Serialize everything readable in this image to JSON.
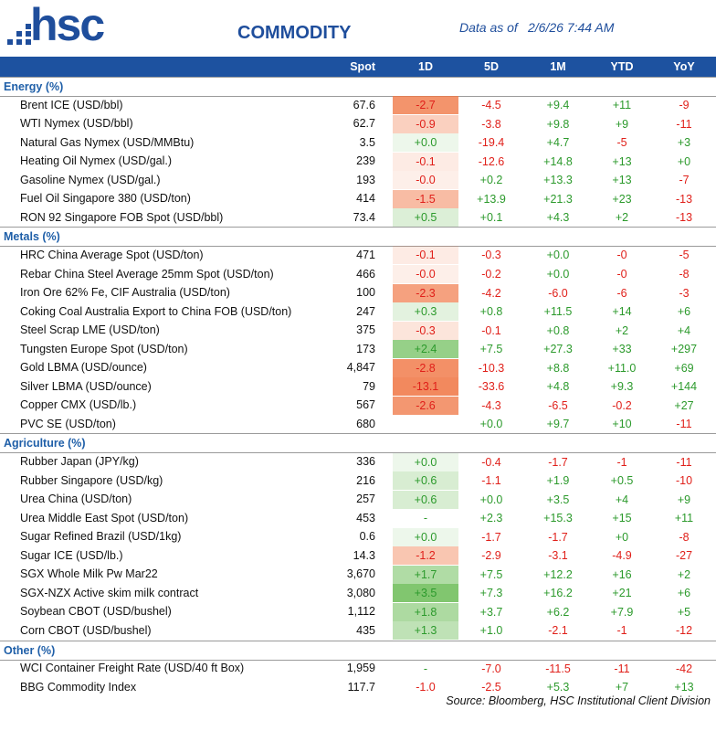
{
  "header": {
    "logo": "hsc",
    "title": "COMMODITY",
    "date_label": "Data as of",
    "date": "2/6/26 7:44 AM"
  },
  "table": {
    "columns": [
      "Spot",
      "1D",
      "5D",
      "1M",
      "YTD",
      "YoY"
    ],
    "sections": [
      {
        "title": "Energy (%)",
        "rows": [
          [
            "Brent ICE (USD/bbl)",
            "67.6",
            "-2.7",
            "-4.5",
            "+9.4",
            "+11",
            "-9"
          ],
          [
            "WTI Nymex (USD/bbl)",
            "62.7",
            "-0.9",
            "-3.8",
            "+9.8",
            "+9",
            "-11"
          ],
          [
            "Natural Gas Nymex (USD/MMBtu)",
            "3.5",
            "+0.0",
            "-19.4",
            "+4.7",
            "-5",
            "+3"
          ],
          [
            "Heating Oil Nymex (USD/gal.)",
            "239",
            "-0.1",
            "-12.6",
            "+14.8",
            "+13",
            "+0"
          ],
          [
            "Gasoline Nymex (USD/gal.)",
            "193",
            "-0.0",
            "+0.2",
            "+13.3",
            "+13",
            "-7"
          ],
          [
            "Fuel Oil Singapore 380 (USD/ton)",
            "414",
            "-1.5",
            "+13.9",
            "+21.3",
            "+23",
            "-13"
          ],
          [
            "RON 92 Singapore FOB Spot (USD/bbl)",
            "73.4",
            "+0.5",
            "+0.1",
            "+4.3",
            "+2",
            "-13"
          ]
        ]
      },
      {
        "title": "Metals (%)",
        "rows": [
          [
            "HRC China Average Spot (USD/ton)",
            "471",
            "-0.1",
            "-0.3",
            "+0.0",
            "-0",
            "-5"
          ],
          [
            "Rebar China Steel Average 25mm Spot (USD/ton)",
            "466",
            "-0.0",
            "-0.2",
            "+0.0",
            "-0",
            "-8"
          ],
          [
            "Iron Ore 62% Fe, CIF Australia (USD/ton)",
            "100",
            "-2.3",
            "-4.2",
            "-6.0",
            "-6",
            "-3"
          ],
          [
            "Coking Coal Australia Export to China FOB (USD/ton)",
            "247",
            "+0.3",
            "+0.8",
            "+11.5",
            "+14",
            "+6"
          ],
          [
            "Steel Scrap LME (USD/ton)",
            "375",
            "-0.3",
            "-0.1",
            "+0.8",
            "+2",
            "+4"
          ],
          [
            "Tungsten Europe Spot (USD/ton)",
            "173",
            "+2.4",
            "+7.5",
            "+27.3",
            "+33",
            "+297"
          ],
          [
            "Gold LBMA (USD/ounce)",
            "4,847",
            "-2.8",
            "-10.3",
            "+8.8",
            "+11.0",
            "+69"
          ],
          [
            "Silver LBMA (USD/ounce)",
            "79",
            "-13.1",
            "-33.6",
            "+4.8",
            "+9.3",
            "+144"
          ],
          [
            "Copper CMX (USD/lb.)",
            "567",
            "-2.6",
            "-4.3",
            "-6.5",
            "-0.2",
            "+27"
          ],
          [
            "PVC SE (USD/ton)",
            "680",
            null,
            "+0.0",
            "+9.7",
            "+10",
            "-11"
          ]
        ]
      },
      {
        "title": "Agriculture (%)",
        "rows": [
          [
            "Rubber Japan (JPY/kg)",
            "336",
            "+0.0",
            "-0.4",
            "-1.7",
            "-1",
            "-11"
          ],
          [
            "Rubber Singapore (USD/kg)",
            "216",
            "+0.6",
            "-1.1",
            "+1.9",
            "+0.5",
            "-10"
          ],
          [
            "Urea China (USD/ton)",
            "257",
            "+0.6",
            "+0.0",
            "+3.5",
            "+4",
            "+9"
          ],
          [
            "Urea Middle East Spot (USD/ton)",
            "453",
            "-",
            "+2.3",
            "+15.3",
            "+15",
            "+11"
          ],
          [
            "Sugar Refined Brazil (USD/1kg)",
            "0.6",
            "+0.0",
            "-1.7",
            "-1.7",
            "+0",
            "-8"
          ],
          [
            "Sugar ICE (USD/lb.)",
            "14.3",
            "-1.2",
            "-2.9",
            "-3.1",
            "-4.9",
            "-27"
          ],
          [
            "SGX Whole Milk Pw Mar22",
            "3,670",
            "+1.7",
            "+7.5",
            "+12.2",
            "+16",
            "+2"
          ],
          [
            "SGX-NZX Active skim milk contract",
            "3,080",
            "+3.5",
            "+7.3",
            "+16.2",
            "+21",
            "+6"
          ],
          [
            "Soybean CBOT (USD/bushel)",
            "1,112",
            "+1.8",
            "+3.7",
            "+6.2",
            "+7.9",
            "+5"
          ],
          [
            "Corn CBOT (USD/bushel)",
            "435",
            "+1.3",
            "+1.0",
            "-2.1",
            "-1",
            "-12"
          ]
        ]
      },
      {
        "title": "Other (%)",
        "rows": [
          [
            "WCI Container Freight Rate (USD/40 ft Box)",
            "1,959",
            "-",
            "-7.0",
            "-11.5",
            "-11",
            "-42"
          ],
          [
            "BBG Commodity Index",
            "117.7",
            "-1.0",
            "-2.5",
            "+5.3",
            "+7",
            "+13"
          ]
        ]
      }
    ]
  },
  "footer": {
    "source": "Source: Bloomberg, HSC Institutional Client Division"
  }
}
